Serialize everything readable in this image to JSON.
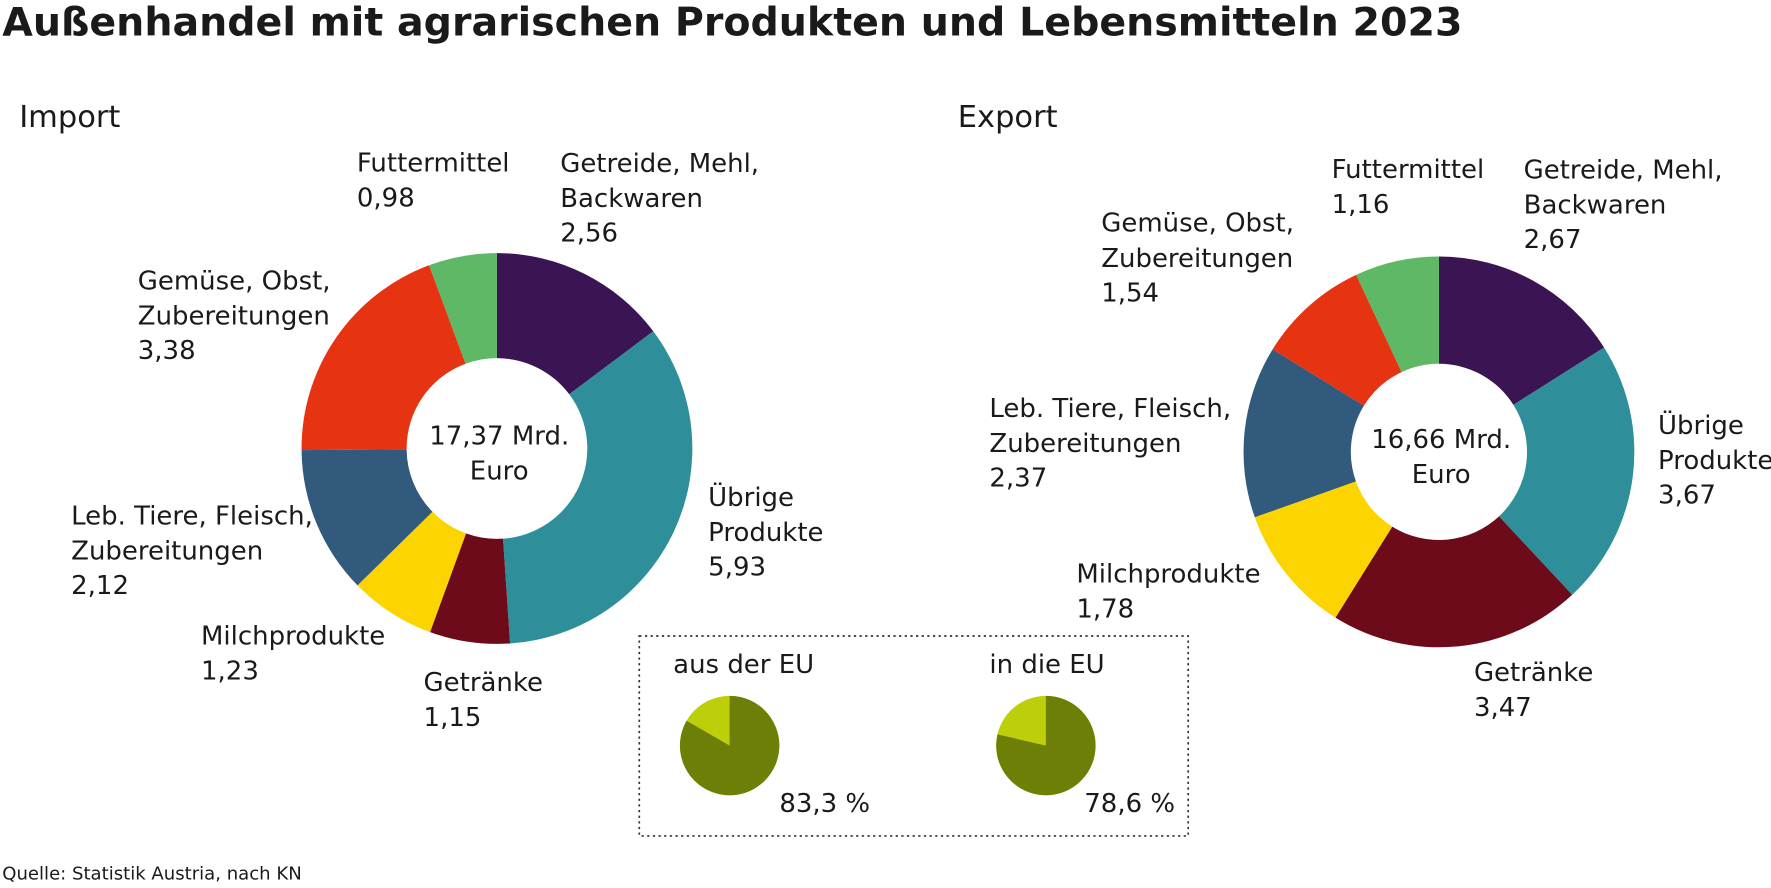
{
  "title": "Außenhandel mit agrarischen Produkten und Lebensmitteln 2023",
  "source": "Quelle: Statistik Austria, nach KN",
  "chart_data": [
    {
      "type": "donut",
      "title": "Import",
      "categories": [
        "Getreide, Mehl,\nBackwaren",
        "Übrige\nProdukte",
        "Getränke",
        "Milchprodukte",
        "Leb. Tiere, Fleisch,\nZubereitungen",
        "Gemüse, Obst,\nZubereitungen",
        "Futtermittel"
      ],
      "values": [
        2.56,
        5.93,
        1.15,
        1.23,
        2.12,
        3.38,
        0.98
      ],
      "value_labels": [
        "2,56",
        "5,93",
        "1,15",
        "1,23",
        "2,12",
        "3,38",
        "0,98"
      ],
      "colors": [
        "#3b1454",
        "#2e8f9b",
        "#6e0b1a",
        "#fcd500",
        "#325a7d",
        "#e63312",
        "#5fb865"
      ],
      "center_label": [
        "17,37 Mrd.",
        "Euro"
      ]
    },
    {
      "type": "donut",
      "title": "Export",
      "categories": [
        "Getreide, Mehl,\nBackwaren",
        "Übrige\nProdukte",
        "Getränke",
        "Milchprodukte",
        "Leb. Tiere, Fleisch,\nZubereitungen",
        "Gemüse, Obst,\nZubereitungen",
        "Futtermittel"
      ],
      "values": [
        2.67,
        3.67,
        3.47,
        1.78,
        2.37,
        1.54,
        1.16
      ],
      "value_labels": [
        "2,67",
        "3,67",
        "3,47",
        "1,78",
        "2,37",
        "1,54",
        "1,16"
      ],
      "colors": [
        "#3b1454",
        "#2e8f9b",
        "#6e0b1a",
        "#fcd500",
        "#325a7d",
        "#e63312",
        "#5fb865"
      ],
      "center_label": [
        "16,66 Mrd.",
        "Euro"
      ]
    },
    {
      "type": "pie",
      "title": "aus der EU",
      "values": [
        83.3
      ],
      "value_labels": [
        "83,3 %"
      ],
      "colors": [
        "#6d7f06"
      ],
      "background_color": "#bccf0a"
    },
    {
      "type": "pie",
      "title": "in die EU",
      "values": [
        78.6
      ],
      "value_labels": [
        "78,6 %"
      ],
      "colors": [
        "#6d7f06"
      ],
      "background_color": "#bccf0a"
    }
  ]
}
